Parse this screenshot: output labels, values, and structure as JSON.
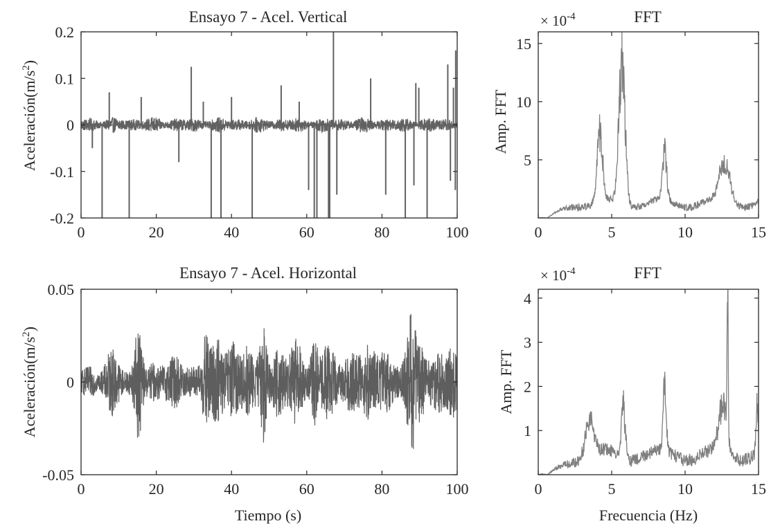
{
  "chart_data": [
    {
      "type": "line",
      "title": "Ensayo 7 - Acel. Vertical",
      "xlabel": "",
      "ylabel": "Aceleración(m/s^2)",
      "ylabel_main": "Aceleración(m/s",
      "ylabel_sup": "2",
      "ylabel_end": ")",
      "xlim": [
        0,
        100
      ],
      "ylim": [
        -0.2,
        0.2
      ],
      "xticks": [
        0,
        20,
        40,
        60,
        80,
        100
      ],
      "xtick_labels": [
        "0",
        "20",
        "40",
        "60",
        "80",
        "100"
      ],
      "yticks": [
        -0.2,
        -0.1,
        0,
        0.1,
        0.2
      ],
      "ytick_labels": [
        "-0.2",
        "-0.1",
        "0",
        "0.1",
        "0.2"
      ],
      "color": "#616161",
      "signal": {
        "base_amplitude": 0.012,
        "fs": 20
      },
      "spikes": [
        {
          "x": 5.6,
          "y": -0.2
        },
        {
          "x": 12.8,
          "y": -0.2
        },
        {
          "x": 34.6,
          "y": -0.2
        },
        {
          "x": 37.2,
          "y": -0.2
        },
        {
          "x": 45.5,
          "y": -0.2
        },
        {
          "x": 60.5,
          "y": -0.14
        },
        {
          "x": 62.0,
          "y": -0.2
        },
        {
          "x": 62.7,
          "y": -0.2
        },
        {
          "x": 65.8,
          "y": -0.2
        },
        {
          "x": 66.1,
          "y": -0.2
        },
        {
          "x": 68.0,
          "y": -0.15
        },
        {
          "x": 81.0,
          "y": -0.15
        },
        {
          "x": 86.2,
          "y": -0.2
        },
        {
          "x": 88.5,
          "y": -0.13
        },
        {
          "x": 92.0,
          "y": -0.2
        },
        {
          "x": 98.2,
          "y": -0.12
        },
        {
          "x": 99.5,
          "y": -0.14
        },
        {
          "x": 3.0,
          "y": -0.05
        },
        {
          "x": 26.0,
          "y": -0.08
        },
        {
          "x": 7.5,
          "y": 0.07
        },
        {
          "x": 16.0,
          "y": 0.06
        },
        {
          "x": 29.3,
          "y": 0.125
        },
        {
          "x": 32.5,
          "y": 0.05
        },
        {
          "x": 40.0,
          "y": 0.06
        },
        {
          "x": 53.2,
          "y": 0.085
        },
        {
          "x": 58.0,
          "y": 0.05
        },
        {
          "x": 67.1,
          "y": 0.2
        },
        {
          "x": 77.0,
          "y": 0.1
        },
        {
          "x": 89.0,
          "y": 0.09
        },
        {
          "x": 89.8,
          "y": 0.08
        },
        {
          "x": 97.5,
          "y": 0.13
        },
        {
          "x": 99.0,
          "y": 0.08
        },
        {
          "x": 99.6,
          "y": 0.16
        }
      ]
    },
    {
      "type": "line",
      "title": "FFT",
      "xlabel": "",
      "ylabel": "Amp. FFT",
      "multiplier_base": "× 10",
      "multiplier_exp": "-4",
      "xlim": [
        0,
        15
      ],
      "ylim": [
        0,
        16
      ],
      "xticks": [
        0,
        5,
        10,
        15
      ],
      "xtick_labels": [
        "0",
        "5",
        "10",
        "15"
      ],
      "yticks": [
        5,
        10,
        15
      ],
      "ytick_labels": [
        "5",
        "10",
        "15"
      ],
      "color": "#7f7f7f",
      "envelope": {
        "base": 1.4,
        "rise_end": 2.5,
        "noise": 0.6
      },
      "peaks": [
        {
          "x": 4.2,
          "y": 7.5,
          "w": 0.25
        },
        {
          "x": 5.7,
          "y": 16.0,
          "w": 0.3
        },
        {
          "x": 8.6,
          "y": 5.6,
          "w": 0.2
        },
        {
          "x": 12.7,
          "y": 4.3,
          "w": 0.5
        }
      ]
    },
    {
      "type": "line",
      "title": "Ensayo 7 - Acel. Horizontal",
      "xlabel": "Tiempo (s)",
      "ylabel": "Aceleración(m/s^2)",
      "ylabel_main": "Aceleración(m/s",
      "ylabel_sup": "2",
      "ylabel_end": ")",
      "xlim": [
        0,
        100
      ],
      "ylim": [
        -0.05,
        0.05
      ],
      "xticks": [
        0,
        20,
        40,
        60,
        80,
        100
      ],
      "xtick_labels": [
        "0",
        "20",
        "40",
        "60",
        "80",
        "100"
      ],
      "yticks": [
        -0.05,
        0,
        0.05
      ],
      "ytick_labels": [
        "-0.05",
        "0",
        "0.05"
      ],
      "color": "#5e5e5e",
      "signal": {
        "base_amplitude": 0.007,
        "fs": 20
      },
      "bursts": [
        {
          "x": 15.3,
          "a": 0.034,
          "w": 1.2
        },
        {
          "x": 8.0,
          "a": 0.012,
          "w": 2.0
        },
        {
          "x": 24.0,
          "a": 0.01,
          "w": 3.0
        },
        {
          "x": 33.2,
          "a": 0.028,
          "w": 1.2
        },
        {
          "x": 36.0,
          "a": 0.02,
          "w": 2.0
        },
        {
          "x": 40.0,
          "a": 0.022,
          "w": 1.5
        },
        {
          "x": 44.0,
          "a": 0.02,
          "w": 2.0
        },
        {
          "x": 48.5,
          "a": 0.032,
          "w": 1.0
        },
        {
          "x": 52.0,
          "a": 0.017,
          "w": 2.0
        },
        {
          "x": 57.0,
          "a": 0.02,
          "w": 2.0
        },
        {
          "x": 62.0,
          "a": 0.025,
          "w": 1.2
        },
        {
          "x": 66.0,
          "a": 0.018,
          "w": 2.0
        },
        {
          "x": 72.0,
          "a": 0.017,
          "w": 2.0
        },
        {
          "x": 77.0,
          "a": 0.018,
          "w": 2.0
        },
        {
          "x": 81.0,
          "a": 0.015,
          "w": 2.0
        },
        {
          "x": 87.8,
          "a": 0.045,
          "w": 1.3
        },
        {
          "x": 90.0,
          "a": 0.02,
          "w": 1.5
        },
        {
          "x": 95.0,
          "a": 0.015,
          "w": 2.0
        },
        {
          "x": 99.0,
          "a": 0.02,
          "w": 1.5
        }
      ]
    },
    {
      "type": "line",
      "title": "FFT",
      "xlabel": "Frecuencia (Hz)",
      "ylabel": "Amp. FFT",
      "multiplier_base": "× 10",
      "multiplier_exp": "-4",
      "xlim": [
        0,
        15
      ],
      "ylim": [
        0,
        4.2
      ],
      "xticks": [
        0,
        5,
        10,
        15
      ],
      "xtick_labels": [
        "0",
        "5",
        "10",
        "15"
      ],
      "yticks": [
        1,
        2,
        3,
        4
      ],
      "ytick_labels": [
        "1",
        "2",
        "3",
        "4"
      ],
      "color": "#7f7f7f",
      "envelope": {
        "base": 0.5,
        "rise_end": 3.0,
        "noise": 0.3
      },
      "peaks": [
        {
          "x": 3.5,
          "y": 1.1,
          "w": 0.4
        },
        {
          "x": 5.8,
          "y": 1.45,
          "w": 0.2
        },
        {
          "x": 8.6,
          "y": 1.8,
          "w": 0.15
        },
        {
          "x": 12.6,
          "y": 1.4,
          "w": 0.4
        },
        {
          "x": 12.9,
          "y": 4.15,
          "w": 0.05
        },
        {
          "x": 14.9,
          "y": 1.4,
          "w": 0.1
        }
      ]
    }
  ]
}
